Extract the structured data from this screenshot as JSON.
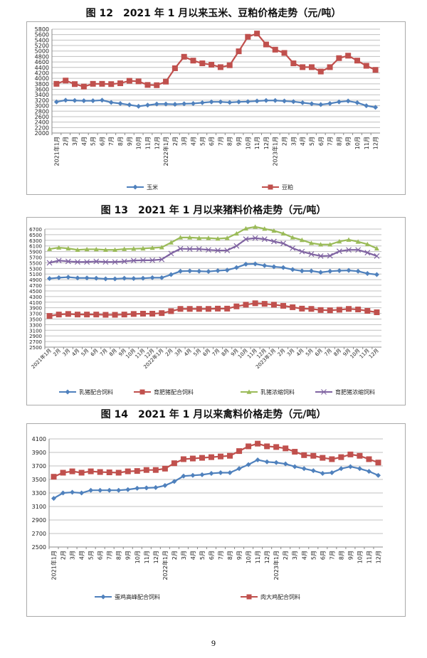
{
  "page_number": "9",
  "chart_data": [
    {
      "type": "line",
      "title": "图 12　2021 年 1 月以来玉米、豆粕价格走势（元/吨）",
      "ylim": [
        2000,
        5800
      ],
      "ystep": 200,
      "xlabel": "",
      "ylabel": "",
      "grid": true,
      "legend": "bottom",
      "categories": [
        "2021年1月",
        "2月",
        "3月",
        "4月",
        "5月",
        "6月",
        "7月",
        "8月",
        "9月",
        "10月",
        "11月",
        "12月",
        "2022年1月",
        "2月",
        "3月",
        "4月",
        "5月",
        "6月",
        "7月",
        "8月",
        "9月",
        "10月",
        "11月",
        "12月",
        "2023年1月",
        "2月",
        "3月",
        "4月",
        "5月",
        "6月",
        "7月",
        "8月",
        "9月",
        "10月",
        "11月",
        "12月"
      ],
      "series": [
        {
          "name": "玉米",
          "color": "#4f81bd",
          "marker": "diamond",
          "values": [
            3140,
            3200,
            3190,
            3180,
            3180,
            3200,
            3120,
            3080,
            3030,
            2980,
            3020,
            3060,
            3060,
            3050,
            3070,
            3080,
            3110,
            3140,
            3140,
            3120,
            3140,
            3150,
            3170,
            3190,
            3190,
            3170,
            3150,
            3110,
            3070,
            3040,
            3080,
            3140,
            3170,
            3110,
            3000,
            2940
          ]
        },
        {
          "name": "豆粕",
          "color": "#c0504d",
          "marker": "square",
          "values": [
            3800,
            3920,
            3790,
            3700,
            3800,
            3800,
            3790,
            3820,
            3910,
            3890,
            3760,
            3750,
            3880,
            4370,
            4790,
            4650,
            4550,
            4500,
            4410,
            4480,
            4990,
            5520,
            5640,
            5240,
            5050,
            4930,
            4550,
            4410,
            4410,
            4250,
            4410,
            4740,
            4830,
            4650,
            4460,
            4310
          ]
        }
      ]
    },
    {
      "type": "line",
      "title": "图 13　2021 年 1 月以来猪料价格走势（元/吨）",
      "ylim": [
        2500,
        6700
      ],
      "ystep": 200,
      "xlabel": "",
      "ylabel": "",
      "grid": true,
      "legend": "bottom",
      "categories": [
        "2021年1月",
        "2月",
        "3月",
        "4月",
        "5月",
        "6月",
        "7月",
        "8月",
        "9月",
        "10月",
        "11月",
        "12月",
        "2022年1月",
        "2月",
        "3月",
        "4月",
        "5月",
        "6月",
        "7月",
        "8月",
        "9月",
        "10月",
        "11月",
        "12月",
        "2023年1月",
        "2月",
        "3月",
        "4月",
        "5月",
        "6月",
        "7月",
        "8月",
        "9月",
        "10月",
        "11月",
        "12月"
      ],
      "series": [
        {
          "name": "乳猪配合饲料",
          "color": "#4f81bd",
          "marker": "diamond",
          "values": [
            4940,
            4970,
            4990,
            4960,
            4960,
            4950,
            4930,
            4930,
            4950,
            4940,
            4950,
            4970,
            4970,
            5080,
            5200,
            5210,
            5200,
            5190,
            5220,
            5240,
            5330,
            5450,
            5460,
            5400,
            5360,
            5330,
            5260,
            5210,
            5210,
            5160,
            5200,
            5220,
            5230,
            5200,
            5120,
            5080
          ]
        },
        {
          "name": "育肥猪配合饲料",
          "color": "#c0504d",
          "marker": "square",
          "values": [
            3610,
            3660,
            3680,
            3660,
            3660,
            3660,
            3650,
            3650,
            3660,
            3680,
            3690,
            3690,
            3710,
            3780,
            3860,
            3860,
            3860,
            3860,
            3870,
            3870,
            3950,
            4010,
            4060,
            4040,
            4010,
            3970,
            3920,
            3870,
            3860,
            3820,
            3810,
            3830,
            3860,
            3840,
            3790,
            3740
          ]
        },
        {
          "name": "乳猪浓缩饲料",
          "color": "#9bbb59",
          "marker": "triangle",
          "values": [
            5990,
            6040,
            6010,
            5960,
            5980,
            5980,
            5960,
            5960,
            5990,
            6000,
            6010,
            6030,
            6050,
            6220,
            6400,
            6400,
            6380,
            6380,
            6360,
            6380,
            6540,
            6720,
            6780,
            6710,
            6640,
            6540,
            6400,
            6310,
            6200,
            6150,
            6150,
            6260,
            6320,
            6250,
            6160,
            6010
          ]
        },
        {
          "name": "育肥猪浓缩饲料",
          "color": "#8064a2",
          "marker": "x",
          "values": [
            5500,
            5580,
            5550,
            5530,
            5530,
            5550,
            5530,
            5530,
            5550,
            5580,
            5590,
            5590,
            5620,
            5830,
            6000,
            5990,
            5990,
            5960,
            5940,
            5940,
            6100,
            6340,
            6380,
            6340,
            6260,
            6190,
            6020,
            5900,
            5810,
            5740,
            5750,
            5910,
            5960,
            5960,
            5860,
            5740
          ]
        }
      ]
    },
    {
      "type": "line",
      "title": "图 14　2021 年 1 月以来禽料价格走势（元/吨）",
      "ylim": [
        2500,
        4100
      ],
      "ystep": 200,
      "xlabel": "",
      "ylabel": "",
      "grid": true,
      "legend": "bottom",
      "categories": [
        "2021年1月",
        "2月",
        "3月",
        "4月",
        "5月",
        "6月",
        "7月",
        "8月",
        "9月",
        "10月",
        "11月",
        "12月",
        "2022年1月",
        "2月",
        "3月",
        "4月",
        "5月",
        "6月",
        "7月",
        "8月",
        "9月",
        "10月",
        "11月",
        "12月",
        "2023年1月",
        "2月",
        "3月",
        "4月",
        "5月",
        "6月",
        "7月",
        "8月",
        "9月",
        "10月",
        "11月",
        "12月"
      ],
      "series": [
        {
          "name": "蛋鸡高峰配合饲料",
          "color": "#4f81bd",
          "marker": "diamond",
          "values": [
            3220,
            3300,
            3310,
            3300,
            3340,
            3340,
            3340,
            3340,
            3350,
            3370,
            3375,
            3380,
            3410,
            3470,
            3550,
            3560,
            3570,
            3590,
            3600,
            3600,
            3660,
            3720,
            3790,
            3760,
            3750,
            3730,
            3690,
            3660,
            3630,
            3590,
            3600,
            3660,
            3690,
            3660,
            3620,
            3560
          ]
        },
        {
          "name": "肉大鸡配合饲料",
          "color": "#c0504d",
          "marker": "square",
          "values": [
            3540,
            3600,
            3620,
            3600,
            3620,
            3610,
            3605,
            3600,
            3620,
            3625,
            3640,
            3640,
            3660,
            3740,
            3800,
            3810,
            3820,
            3830,
            3840,
            3850,
            3920,
            3990,
            4030,
            3990,
            3980,
            3960,
            3910,
            3860,
            3850,
            3820,
            3800,
            3830,
            3870,
            3850,
            3800,
            3750
          ]
        }
      ]
    }
  ]
}
